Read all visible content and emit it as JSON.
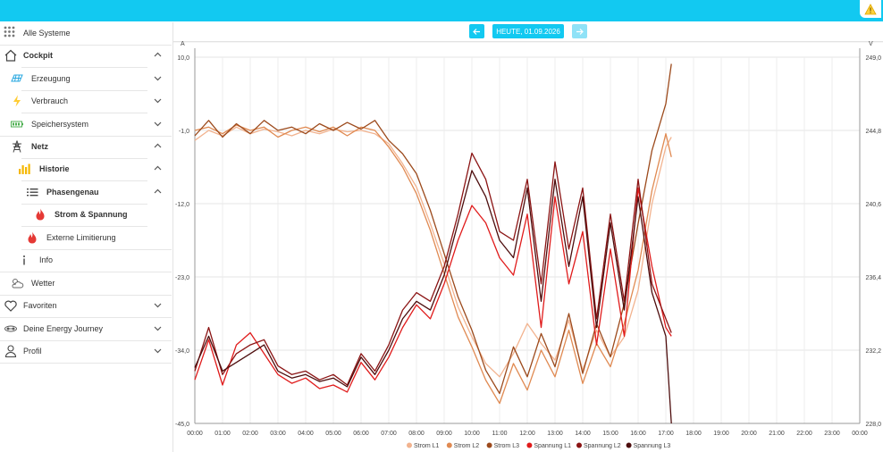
{
  "topbar": {
    "accent": "#12c9f1",
    "warning_icon": "warning-icon"
  },
  "sidebar": {
    "items": [
      {
        "name": "nav-alle-systeme",
        "label": "Alle Systeme",
        "icon": "grid-icon",
        "bold": false,
        "chevron": ""
      },
      {
        "name": "nav-cockpit",
        "label": "Cockpit",
        "icon": "home-icon",
        "bold": true,
        "chevron": "up"
      },
      {
        "name": "nav-erzeugung",
        "label": "Erzeugung",
        "icon": "solar-panel-icon",
        "bold": false,
        "chevron": "down"
      },
      {
        "name": "nav-verbrauch",
        "label": "Verbrauch",
        "icon": "lightning-icon",
        "bold": false,
        "chevron": "down"
      },
      {
        "name": "nav-speichersystem",
        "label": "Speichersystem",
        "icon": "battery-icon",
        "bold": false,
        "chevron": "down"
      },
      {
        "name": "nav-netz",
        "label": "Netz",
        "icon": "power-pylon-icon",
        "bold": true,
        "chevron": "up"
      },
      {
        "name": "nav-historie",
        "label": "Historie",
        "icon": "bar-chart-icon",
        "bold": true,
        "chevron": "up"
      },
      {
        "name": "nav-phasengenau",
        "label": "Phasengenau",
        "icon": "list-icon",
        "bold": true,
        "chevron": "up"
      },
      {
        "name": "nav-strom-spannung",
        "label": "Strom & Spannung",
        "icon": "flame-icon",
        "bold": true,
        "chevron": ""
      },
      {
        "name": "nav-externe-limitierung",
        "label": "Externe Limitierung",
        "icon": "flame-icon",
        "bold": false,
        "chevron": ""
      },
      {
        "name": "nav-info",
        "label": "Info",
        "icon": "info-icon",
        "bold": false,
        "chevron": ""
      },
      {
        "name": "nav-wetter",
        "label": "Wetter",
        "icon": "weather-icon",
        "bold": false,
        "chevron": ""
      },
      {
        "name": "nav-favoriten",
        "label": "Favoriten",
        "icon": "heart-icon",
        "bold": false,
        "chevron": "down"
      },
      {
        "name": "nav-energy-journey",
        "label": "Deine Energy Journey",
        "icon": "journey-icon",
        "bold": false,
        "chevron": "down"
      },
      {
        "name": "nav-profil",
        "label": "Profil",
        "icon": "user-icon",
        "bold": false,
        "chevron": "down"
      }
    ]
  },
  "datebar": {
    "prev_icon": "arrow-left-icon",
    "date_label": "HEUTE, 01.09.2026",
    "next_icon": "arrow-right-icon"
  },
  "chart_data": {
    "type": "line",
    "left_unit": "A",
    "right_unit": "V",
    "y_left_ticks": [
      "10,0",
      "-1,0",
      "-12,0",
      "-23,0",
      "-34,0",
      "-45,0"
    ],
    "y_right_ticks": [
      "249,0",
      "244,8",
      "240,6",
      "236,4",
      "232,2",
      "228,0"
    ],
    "y_left_range": [
      -45,
      10
    ],
    "y_right_range": [
      228,
      249
    ],
    "x_ticks": [
      "00:00",
      "01:00",
      "02:00",
      "03:00",
      "04:00",
      "05:00",
      "06:00",
      "07:00",
      "08:00",
      "09:00",
      "10:00",
      "11:00",
      "12:00",
      "13:00",
      "14:00",
      "15:00",
      "16:00",
      "17:00",
      "18:00",
      "19:00",
      "20:00",
      "21:00",
      "22:00",
      "23:00",
      "00:00"
    ],
    "x_range_hours": [
      0,
      24
    ],
    "grid": true,
    "legend_position": "bottom",
    "series": [
      {
        "name": "Strom L1",
        "axis": "left",
        "color": "#f2b38f",
        "points": [
          [
            0,
            -2.5
          ],
          [
            0.5,
            -1.0
          ],
          [
            1,
            -1.8
          ],
          [
            1.5,
            -0.5
          ],
          [
            2,
            -1.5
          ],
          [
            2.5,
            -0.8
          ],
          [
            3,
            -1.2
          ],
          [
            3.5,
            -1.8
          ],
          [
            4,
            -1.0
          ],
          [
            4.5,
            -1.5
          ],
          [
            5,
            -0.8
          ],
          [
            5.5,
            -1.2
          ],
          [
            6,
            -1.0
          ],
          [
            6.5,
            -1.5
          ],
          [
            7,
            -3.0
          ],
          [
            7.5,
            -6.0
          ],
          [
            8,
            -9.5
          ],
          [
            8.5,
            -15.0
          ],
          [
            9,
            -21.0
          ],
          [
            9.5,
            -27.5
          ],
          [
            10,
            -32.0
          ],
          [
            10.5,
            -36.0
          ],
          [
            11,
            -38.0
          ],
          [
            11.5,
            -34.5
          ],
          [
            12,
            -30.0
          ],
          [
            12.5,
            -33.0
          ],
          [
            13,
            -35.5
          ],
          [
            13.5,
            -29.5
          ],
          [
            14,
            -37.0
          ],
          [
            14.5,
            -31.0
          ],
          [
            15,
            -35.0
          ],
          [
            15.5,
            -32.0
          ],
          [
            16,
            -25.0
          ],
          [
            16.5,
            -12.0
          ],
          [
            17,
            -3.5
          ],
          [
            17.2,
            -2.0
          ]
        ]
      },
      {
        "name": "Strom L2",
        "axis": "left",
        "color": "#e08a52",
        "points": [
          [
            0,
            -1.0
          ],
          [
            0.5,
            -0.5
          ],
          [
            1,
            -1.5
          ],
          [
            1.5,
            -0.2
          ],
          [
            2,
            -1.0
          ],
          [
            2.5,
            -0.5
          ],
          [
            3,
            -2.0
          ],
          [
            3.5,
            -1.0
          ],
          [
            4,
            -0.5
          ],
          [
            4.5,
            -1.2
          ],
          [
            5,
            -0.5
          ],
          [
            5.5,
            -1.8
          ],
          [
            6,
            -0.5
          ],
          [
            6.5,
            -1.0
          ],
          [
            7,
            -3.5
          ],
          [
            7.5,
            -6.5
          ],
          [
            8,
            -10.5
          ],
          [
            8.5,
            -16.0
          ],
          [
            9,
            -22.5
          ],
          [
            9.5,
            -29.0
          ],
          [
            10,
            -33.5
          ],
          [
            10.5,
            -38.5
          ],
          [
            11,
            -42.0
          ],
          [
            11.5,
            -36.0
          ],
          [
            12,
            -40.0
          ],
          [
            12.5,
            -34.0
          ],
          [
            13,
            -38.0
          ],
          [
            13.5,
            -31.0
          ],
          [
            14,
            -39.0
          ],
          [
            14.5,
            -33.0
          ],
          [
            15,
            -36.5
          ],
          [
            15.5,
            -30.0
          ],
          [
            16,
            -22.0
          ],
          [
            16.5,
            -10.0
          ],
          [
            17,
            -1.5
          ],
          [
            17.2,
            -5.0
          ]
        ]
      },
      {
        "name": "Strom L3",
        "axis": "left",
        "color": "#9c4a1c",
        "points": [
          [
            0,
            -1.8
          ],
          [
            0.5,
            0.5
          ],
          [
            1,
            -2.0
          ],
          [
            1.5,
            0.0
          ],
          [
            2,
            -1.5
          ],
          [
            2.5,
            0.5
          ],
          [
            3,
            -1.0
          ],
          [
            3.5,
            -0.5
          ],
          [
            4,
            -1.5
          ],
          [
            4.5,
            0.0
          ],
          [
            5,
            -1.0
          ],
          [
            5.5,
            0.2
          ],
          [
            6,
            -0.8
          ],
          [
            6.5,
            0.5
          ],
          [
            7,
            -2.5
          ],
          [
            7.5,
            -4.5
          ],
          [
            8,
            -7.5
          ],
          [
            8.5,
            -13.0
          ],
          [
            9,
            -19.5
          ],
          [
            9.5,
            -26.0
          ],
          [
            10,
            -31.0
          ],
          [
            10.5,
            -37.0
          ],
          [
            11,
            -40.5
          ],
          [
            11.5,
            -33.5
          ],
          [
            12,
            -38.0
          ],
          [
            12.5,
            -31.5
          ],
          [
            13,
            -36.5
          ],
          [
            13.5,
            -28.5
          ],
          [
            14,
            -37.5
          ],
          [
            14.5,
            -30.0
          ],
          [
            15,
            -35.0
          ],
          [
            15.5,
            -27.0
          ],
          [
            16,
            -15.0
          ],
          [
            16.5,
            -4.0
          ],
          [
            17,
            3.0
          ],
          [
            17.2,
            9.0
          ]
        ]
      },
      {
        "name": "Spannung L1",
        "axis": "right",
        "color": "#e01b1b",
        "points": [
          [
            0,
            230.5
          ],
          [
            0.5,
            232.8
          ],
          [
            1,
            230.2
          ],
          [
            1.5,
            232.5
          ],
          [
            2,
            233.2
          ],
          [
            2.5,
            232.0
          ],
          [
            3,
            230.8
          ],
          [
            3.5,
            230.3
          ],
          [
            4,
            230.6
          ],
          [
            4.5,
            230.0
          ],
          [
            5,
            230.2
          ],
          [
            5.5,
            229.8
          ],
          [
            6,
            231.5
          ],
          [
            6.5,
            230.5
          ],
          [
            7,
            231.8
          ],
          [
            7.5,
            233.5
          ],
          [
            8,
            234.8
          ],
          [
            8.5,
            234.0
          ],
          [
            9,
            236.0
          ],
          [
            9.5,
            238.5
          ],
          [
            10,
            240.5
          ],
          [
            10.5,
            239.5
          ],
          [
            11,
            237.5
          ],
          [
            11.5,
            236.5
          ],
          [
            12,
            240.0
          ],
          [
            12.5,
            233.5
          ],
          [
            13,
            241.0
          ],
          [
            13.5,
            236.0
          ],
          [
            14,
            239.0
          ],
          [
            14.5,
            232.5
          ],
          [
            15,
            238.0
          ],
          [
            15.5,
            233.0
          ],
          [
            16,
            241.5
          ],
          [
            16.5,
            237.0
          ],
          [
            17,
            233.5
          ],
          [
            17.2,
            233.0
          ]
        ]
      },
      {
        "name": "Spannung L2",
        "axis": "right",
        "color": "#8b1414",
        "points": [
          [
            0,
            231.0
          ],
          [
            0.5,
            233.5
          ],
          [
            1,
            230.8
          ],
          [
            1.5,
            232.0
          ],
          [
            2,
            232.5
          ],
          [
            2.5,
            232.8
          ],
          [
            3,
            231.3
          ],
          [
            3.5,
            230.8
          ],
          [
            4,
            231.0
          ],
          [
            4.5,
            230.5
          ],
          [
            5,
            230.8
          ],
          [
            5.5,
            230.2
          ],
          [
            6,
            232.0
          ],
          [
            6.5,
            231.0
          ],
          [
            7,
            232.5
          ],
          [
            7.5,
            234.5
          ],
          [
            8,
            235.5
          ],
          [
            8.5,
            235.0
          ],
          [
            9,
            237.0
          ],
          [
            9.5,
            240.0
          ],
          [
            10,
            243.5
          ],
          [
            10.5,
            242.0
          ],
          [
            11,
            239.0
          ],
          [
            11.5,
            238.5
          ],
          [
            12,
            242.0
          ],
          [
            12.5,
            236.0
          ],
          [
            13,
            243.0
          ],
          [
            13.5,
            238.0
          ],
          [
            14,
            241.5
          ],
          [
            14.5,
            234.0
          ],
          [
            15,
            240.0
          ],
          [
            15.5,
            235.0
          ],
          [
            16,
            242.0
          ],
          [
            16.5,
            236.0
          ],
          [
            17,
            234.0
          ],
          [
            17.2,
            233.2
          ]
        ]
      },
      {
        "name": "Spannung L3",
        "axis": "right",
        "color": "#4d0d0d",
        "points": [
          [
            0,
            231.2
          ],
          [
            0.5,
            233.0
          ],
          [
            1,
            231.0
          ],
          [
            1.5,
            231.5
          ],
          [
            2,
            232.0
          ],
          [
            2.5,
            232.5
          ],
          [
            3,
            231.0
          ],
          [
            3.5,
            230.6
          ],
          [
            4,
            230.8
          ],
          [
            4.5,
            230.4
          ],
          [
            5,
            230.6
          ],
          [
            5.5,
            230.1
          ],
          [
            6,
            231.8
          ],
          [
            6.5,
            230.8
          ],
          [
            7,
            232.2
          ],
          [
            7.5,
            234.0
          ],
          [
            8,
            235.0
          ],
          [
            8.5,
            234.5
          ],
          [
            9,
            236.5
          ],
          [
            9.5,
            239.5
          ],
          [
            10,
            242.5
          ],
          [
            10.5,
            241.0
          ],
          [
            11,
            238.5
          ],
          [
            11.5,
            237.5
          ],
          [
            12,
            241.5
          ],
          [
            12.5,
            235.0
          ],
          [
            13,
            242.0
          ],
          [
            13.5,
            237.0
          ],
          [
            14,
            241.0
          ],
          [
            14.5,
            233.5
          ],
          [
            15,
            239.5
          ],
          [
            15.5,
            234.5
          ],
          [
            16,
            241.0
          ],
          [
            16.5,
            235.5
          ],
          [
            17,
            233.0
          ],
          [
            17.2,
            228.0
          ]
        ]
      }
    ]
  }
}
